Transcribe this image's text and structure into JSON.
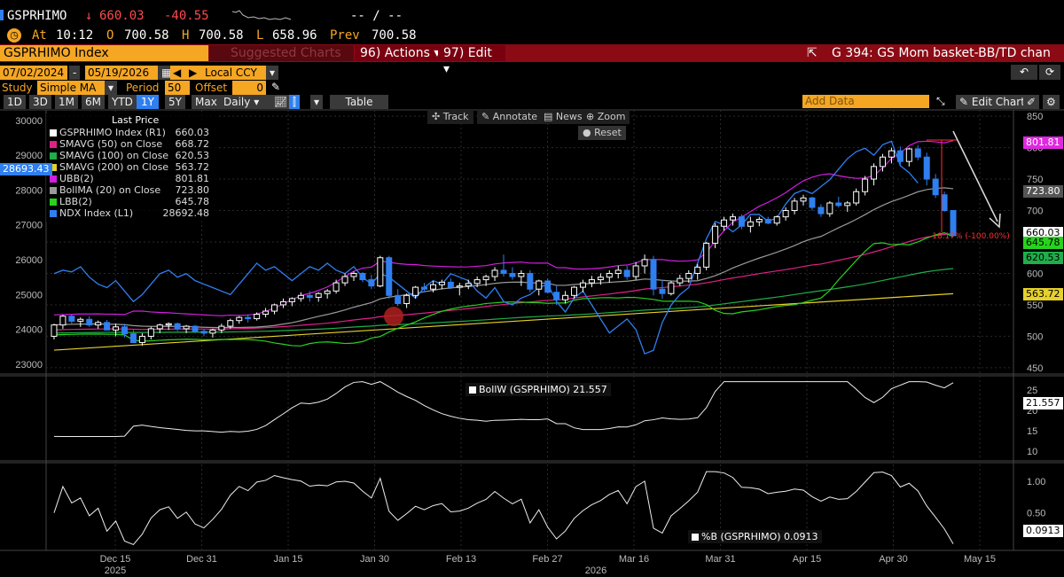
{
  "header": {
    "ticker": "GSPRHIMO",
    "arrow": "↓",
    "last": "660.03",
    "change": "-40.55",
    "bidask": "-- / --",
    "at_label": "At",
    "time": "10:12",
    "o_label": "O",
    "open": "700.58",
    "h_label": "H",
    "high": "700.58",
    "l_label": "L",
    "low": "658.96",
    "prev_label": "Prev",
    "prev": "700.58"
  },
  "toolbar": {
    "security": "GSPRHIMO Index",
    "suggested": "Suggested Charts",
    "actions": "96) Actions",
    "edit": "97) Edit",
    "chart_title": "G 394: GS Mom basket-BB/TD chan",
    "start_date": "07/02/2024",
    "end_date": "05/19/2026",
    "currency": "Local CCY",
    "study_label": "Study",
    "study": "Simple MA",
    "period_label": "Period",
    "period": "50",
    "offset_label": "Offset",
    "offset": "0",
    "ranges": [
      "1D",
      "3D",
      "1M",
      "6M",
      "YTD",
      "1Y",
      "5Y",
      "Max"
    ],
    "selected_range": "1Y",
    "frequency": "Daily",
    "table_label": "Table",
    "add_data_placeholder": "Add Data",
    "edit_chart": "Edit Chart",
    "track": "Track",
    "annotate": "Annotate",
    "news": "News",
    "zoom": "Zoom",
    "reset": "Reset"
  },
  "legend": {
    "title": "Last Price",
    "items": [
      {
        "label": "GSPRHIMO Index  (R1)",
        "value": "660.03",
        "color": "#ffffff"
      },
      {
        "label": "SMAVG (50)  on Close",
        "value": "668.72",
        "color": "#e0208a"
      },
      {
        "label": "SMAVG (100)  on Close",
        "value": "620.53",
        "color": "#1fae4a"
      },
      {
        "label": "SMAVG (200)  on Close",
        "value": "563.72",
        "color": "#e6d02a"
      },
      {
        "label": "UBB(2)",
        "value": "801.81",
        "color": "#d21ee0"
      },
      {
        "label": "BollMA (20)  on Close",
        "value": "723.80",
        "color": "#9a9a9a"
      },
      {
        "label": "LBB(2)",
        "value": "645.78",
        "color": "#28d21e"
      },
      {
        "label": "NDX Index  (L1)",
        "value": "28692.48",
        "color": "#2f7ff0"
      }
    ]
  },
  "right_tags": {
    "ubb": "801.81",
    "bollma": "723.80",
    "last": "660.03",
    "lbb": "645.78",
    "sma100": "620.53",
    "sma200": "563.72",
    "bollw": "21.557",
    "pctb": "0.0913"
  },
  "left_tags": {
    "ndx": "28693.43"
  },
  "annotation_text": "-18.17% (-100.00%)",
  "panels": {
    "bollw_label": "BollW (GSPRHIMO)",
    "bollw_value": "21.557",
    "pctb_label": "%B (GSPRHIMO)",
    "pctb_value": "0.0913"
  },
  "x_axis": {
    "labels": [
      "Dec 15",
      "Dec 31",
      "Jan 15",
      "Jan 30",
      "Feb 13",
      "Feb 27",
      "Mar 16",
      "Mar 31",
      "Apr 15",
      "Apr 30",
      "May 15"
    ],
    "years": [
      "2025",
      "2026"
    ]
  },
  "colors": {
    "accent": "#f5a623",
    "up": "#ffffff",
    "down": "#2f7ff0",
    "red": "#ff3030"
  },
  "chart_data": {
    "type": "candlestick",
    "y_right_ticks": [
      450,
      500,
      550,
      600,
      650,
      700,
      750,
      800,
      850
    ],
    "y_right_range": [
      440,
      860
    ],
    "y_left_ticks": [
      23000,
      24000,
      25000,
      26000,
      27000,
      28000,
      29000,
      30000
    ],
    "y_left_range": [
      22720,
      30300
    ],
    "bollw_ticks": [
      10,
      15,
      20,
      25
    ],
    "pctb_ticks": [
      0.5,
      1.0
    ],
    "candles": [
      [
        500,
        520,
        495,
        518
      ],
      [
        518,
        534,
        512,
        532
      ],
      [
        532,
        535,
        520,
        524
      ],
      [
        524,
        530,
        515,
        527
      ],
      [
        527,
        532,
        515,
        518
      ],
      [
        518,
        525,
        512,
        522
      ],
      [
        522,
        526,
        510,
        510
      ],
      [
        510,
        520,
        500,
        515
      ],
      [
        515,
        520,
        498,
        504
      ],
      [
        504,
        510,
        490,
        490
      ],
      [
        490,
        505,
        485,
        500
      ],
      [
        500,
        515,
        495,
        512
      ],
      [
        512,
        520,
        505,
        518
      ],
      [
        518,
        522,
        510,
        520
      ],
      [
        520,
        522,
        508,
        512
      ],
      [
        512,
        518,
        505,
        516
      ],
      [
        516,
        518,
        505,
        508
      ],
      [
        508,
        512,
        500,
        505
      ],
      [
        505,
        512,
        498,
        510
      ],
      [
        510,
        520,
        505,
        516
      ],
      [
        516,
        528,
        512,
        525
      ],
      [
        525,
        532,
        520,
        530
      ],
      [
        530,
        535,
        522,
        528
      ],
      [
        528,
        538,
        525,
        535
      ],
      [
        535,
        545,
        530,
        540
      ],
      [
        540,
        552,
        535,
        550
      ],
      [
        550,
        560,
        545,
        555
      ],
      [
        555,
        562,
        548,
        560
      ],
      [
        560,
        570,
        555,
        565
      ],
      [
        565,
        572,
        555,
        562
      ],
      [
        562,
        570,
        555,
        568
      ],
      [
        568,
        575,
        560,
        572
      ],
      [
        572,
        590,
        568,
        585
      ],
      [
        585,
        600,
        580,
        595
      ],
      [
        595,
        603,
        588,
        600
      ],
      [
        600,
        602,
        586,
        590
      ],
      [
        590,
        598,
        575,
        580
      ],
      [
        580,
        628,
        578,
        625
      ],
      [
        625,
        628,
        560,
        565
      ],
      [
        565,
        575,
        548,
        552
      ],
      [
        552,
        568,
        545,
        565
      ],
      [
        565,
        580,
        560,
        578
      ],
      [
        578,
        585,
        570,
        575
      ],
      [
        575,
        588,
        570,
        582
      ],
      [
        582,
        590,
        575,
        586
      ],
      [
        586,
        592,
        575,
        578
      ],
      [
        578,
        585,
        565,
        580
      ],
      [
        580,
        590,
        575,
        584
      ],
      [
        584,
        595,
        578,
        590
      ],
      [
        590,
        598,
        580,
        595
      ],
      [
        595,
        610,
        588,
        605
      ],
      [
        605,
        630,
        595,
        600
      ],
      [
        600,
        610,
        590,
        595
      ],
      [
        595,
        605,
        580,
        600
      ],
      [
        600,
        605,
        570,
        575
      ],
      [
        575,
        590,
        565,
        588
      ],
      [
        588,
        592,
        568,
        570
      ],
      [
        570,
        580,
        550,
        558
      ],
      [
        558,
        572,
        552,
        565
      ],
      [
        565,
        580,
        560,
        578
      ],
      [
        578,
        590,
        570,
        585
      ],
      [
        585,
        596,
        578,
        590
      ],
      [
        590,
        600,
        582,
        594
      ],
      [
        594,
        605,
        585,
        600
      ],
      [
        600,
        612,
        592,
        605
      ],
      [
        605,
        612,
        590,
        595
      ],
      [
        595,
        618,
        590,
        612
      ],
      [
        612,
        630,
        600,
        622
      ],
      [
        622,
        628,
        565,
        575
      ],
      [
        575,
        590,
        560,
        568
      ],
      [
        568,
        588,
        565,
        585
      ],
      [
        585,
        598,
        580,
        592
      ],
      [
        592,
        605,
        585,
        600
      ],
      [
        600,
        615,
        590,
        610
      ],
      [
        610,
        650,
        605,
        648
      ],
      [
        648,
        680,
        640,
        675
      ],
      [
        675,
        690,
        668,
        685
      ],
      [
        685,
        695,
        676,
        690
      ],
      [
        690,
        694,
        670,
        675
      ],
      [
        675,
        690,
        665,
        682
      ],
      [
        682,
        690,
        675,
        686
      ],
      [
        686,
        690,
        678,
        680
      ],
      [
        680,
        692,
        676,
        690
      ],
      [
        690,
        705,
        684,
        700
      ],
      [
        700,
        720,
        694,
        715
      ],
      [
        715,
        725,
        708,
        720
      ],
      [
        720,
        722,
        700,
        705
      ],
      [
        705,
        710,
        690,
        695
      ],
      [
        695,
        715,
        690,
        712
      ],
      [
        712,
        722,
        705,
        708
      ],
      [
        708,
        715,
        698,
        712
      ],
      [
        712,
        735,
        708,
        730
      ],
      [
        730,
        755,
        724,
        750
      ],
      [
        750,
        775,
        740,
        770
      ],
      [
        770,
        790,
        762,
        785
      ],
      [
        785,
        800,
        775,
        795
      ],
      [
        795,
        802,
        770,
        778
      ],
      [
        778,
        800,
        770,
        798
      ],
      [
        798,
        804,
        780,
        785
      ],
      [
        785,
        792,
        740,
        750
      ],
      [
        750,
        758,
        720,
        725
      ],
      [
        725,
        730,
        698,
        700
      ],
      [
        700,
        700,
        659,
        660
      ]
    ]
  }
}
